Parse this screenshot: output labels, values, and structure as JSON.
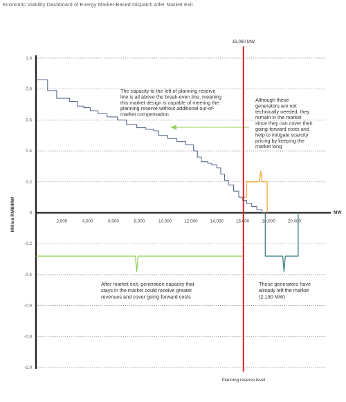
{
  "header": {
    "title": "Economic Viability Dashboard of Energy Market-Based Dispatch After Market Exit"
  },
  "colors": {
    "supply_curve": "#5b6c8f",
    "reserve_line": "#d6202a",
    "exit_curve": "#3b7f84",
    "benefit_line": "#8fd05a",
    "mitigation_line": "#f2a93b",
    "zero_axis": "#222222",
    "grid": "#7a7a7a"
  },
  "chart_data": {
    "type": "line",
    "title": "Economic Viability Dashboard of Energy Market-Based Dispatch After Market Exit",
    "xlabel": "MW",
    "ylabel": "Million RMB/MW",
    "xlim": [
      0,
      22500
    ],
    "ylim": [
      -1.0,
      1.0
    ],
    "x_ticks": [
      2000,
      4000,
      6000,
      8000,
      10000,
      12000,
      14000,
      16000,
      18000,
      20000
    ],
    "x_tick_labels": [
      "2,000",
      "4,000",
      "6,000",
      "8,000",
      "10,000",
      "12,000",
      "14,000",
      "16,000",
      "18,000",
      "20,000"
    ],
    "y_ticks": [
      1.0,
      0.8,
      0.6,
      0.4,
      0.2,
      0,
      -0.2,
      -0.4,
      -0.6,
      -0.8,
      -1.0
    ],
    "y_tick_labels": [
      "1.0",
      "0.8",
      "0.6",
      "0.4",
      "0.2",
      "0",
      "-0.2",
      "-0.4",
      "-0.6",
      "-0.8",
      "-1.0"
    ],
    "grid": "dotted horizontal",
    "series": [
      {
        "role": "supply_curve",
        "points": [
          [
            0,
            0.86
          ],
          [
            900,
            0.86
          ],
          [
            900,
            0.79
          ],
          [
            1600,
            0.79
          ],
          [
            1600,
            0.74
          ],
          [
            2600,
            0.74
          ],
          [
            2600,
            0.72
          ],
          [
            3200,
            0.72
          ],
          [
            3200,
            0.69
          ],
          [
            3700,
            0.69
          ],
          [
            3700,
            0.68
          ],
          [
            4200,
            0.68
          ],
          [
            4200,
            0.66
          ],
          [
            4800,
            0.66
          ],
          [
            4800,
            0.64
          ],
          [
            5500,
            0.64
          ],
          [
            5500,
            0.62
          ],
          [
            6300,
            0.62
          ],
          [
            6300,
            0.6
          ],
          [
            7000,
            0.6
          ],
          [
            7000,
            0.57
          ],
          [
            7800,
            0.57
          ],
          [
            7800,
            0.55
          ],
          [
            8500,
            0.55
          ],
          [
            8500,
            0.54
          ],
          [
            9100,
            0.54
          ],
          [
            9100,
            0.53
          ],
          [
            9500,
            0.53
          ],
          [
            9500,
            0.5
          ],
          [
            10200,
            0.5
          ],
          [
            10200,
            0.48
          ],
          [
            10900,
            0.48
          ],
          [
            10900,
            0.46
          ],
          [
            11600,
            0.46
          ],
          [
            11600,
            0.44
          ],
          [
            12200,
            0.44
          ],
          [
            12200,
            0.4
          ],
          [
            12500,
            0.4
          ],
          [
            12500,
            0.36
          ],
          [
            12800,
            0.36
          ],
          [
            12800,
            0.33
          ],
          [
            13300,
            0.33
          ],
          [
            13300,
            0.32
          ],
          [
            13600,
            0.32
          ],
          [
            13600,
            0.31
          ],
          [
            14000,
            0.31
          ],
          [
            14000,
            0.29
          ],
          [
            14300,
            0.29
          ],
          [
            14300,
            0.25
          ],
          [
            14600,
            0.25
          ],
          [
            14600,
            0.21
          ],
          [
            14900,
            0.21
          ],
          [
            14900,
            0.18
          ],
          [
            15300,
            0.18
          ],
          [
            15300,
            0.14
          ],
          [
            15700,
            0.14
          ],
          [
            15700,
            0.1
          ],
          [
            16000,
            0.1
          ],
          [
            16000,
            0.08
          ],
          [
            16300,
            0.08
          ],
          [
            16300,
            0.06
          ],
          [
            16700,
            0.06
          ],
          [
            16700,
            0.04
          ],
          [
            17100,
            0.04
          ],
          [
            17100,
            0.02
          ],
          [
            17500,
            0.02
          ],
          [
            17500,
            0
          ],
          [
            17750,
            0
          ]
        ]
      },
      {
        "role": "exit_curve",
        "points": [
          [
            17750,
            0
          ],
          [
            17750,
            -0.28
          ],
          [
            19100,
            -0.28
          ],
          [
            19200,
            -0.38
          ],
          [
            19300,
            -0.28
          ],
          [
            20300,
            -0.28
          ],
          [
            20300,
            0
          ]
        ]
      },
      {
        "role": "benefit_line",
        "points": [
          [
            0,
            -0.28
          ],
          [
            7700,
            -0.28
          ],
          [
            7800,
            -0.38
          ],
          [
            7900,
            -0.28
          ],
          [
            16060,
            -0.28
          ]
        ]
      },
      {
        "role": "mitigation_line",
        "points": [
          [
            16060,
            0.1
          ],
          [
            16300,
            0.1
          ],
          [
            16300,
            0.2
          ],
          [
            17300,
            0.2
          ],
          [
            17400,
            0.27
          ],
          [
            17500,
            0.2
          ],
          [
            17900,
            0.2
          ],
          [
            17900,
            0
          ]
        ]
      }
    ],
    "reference_lines": [
      {
        "x": 16060,
        "top_label": "16,060 MW",
        "bottom_label": "Planning reserve level"
      }
    ],
    "annotations": [
      {
        "id": "left",
        "lines": [
          "The capacity to the left of planning reserve",
          "line is all above the break-even line, meaning",
          "this market design is capable of meeting the",
          "planning reserve without additional out-of-",
          "market compensation"
        ]
      },
      {
        "id": "right",
        "lines": [
          "Although these",
          "generators are not",
          "technically needed, they",
          "remain in the market",
          "since they can cover their",
          "going-forward costs and",
          "help to mitigate scarcity",
          "pricing by keeping the",
          "market long"
        ]
      },
      {
        "id": "bottom-left",
        "lines": [
          "After market exit, generation capacity that",
          "stays in the market could receive greater",
          "revenues and cover going-forward costs"
        ]
      },
      {
        "id": "bottom-right",
        "lines": [
          "These generators have",
          "already left the market",
          "(2,190 MW)"
        ]
      }
    ]
  }
}
